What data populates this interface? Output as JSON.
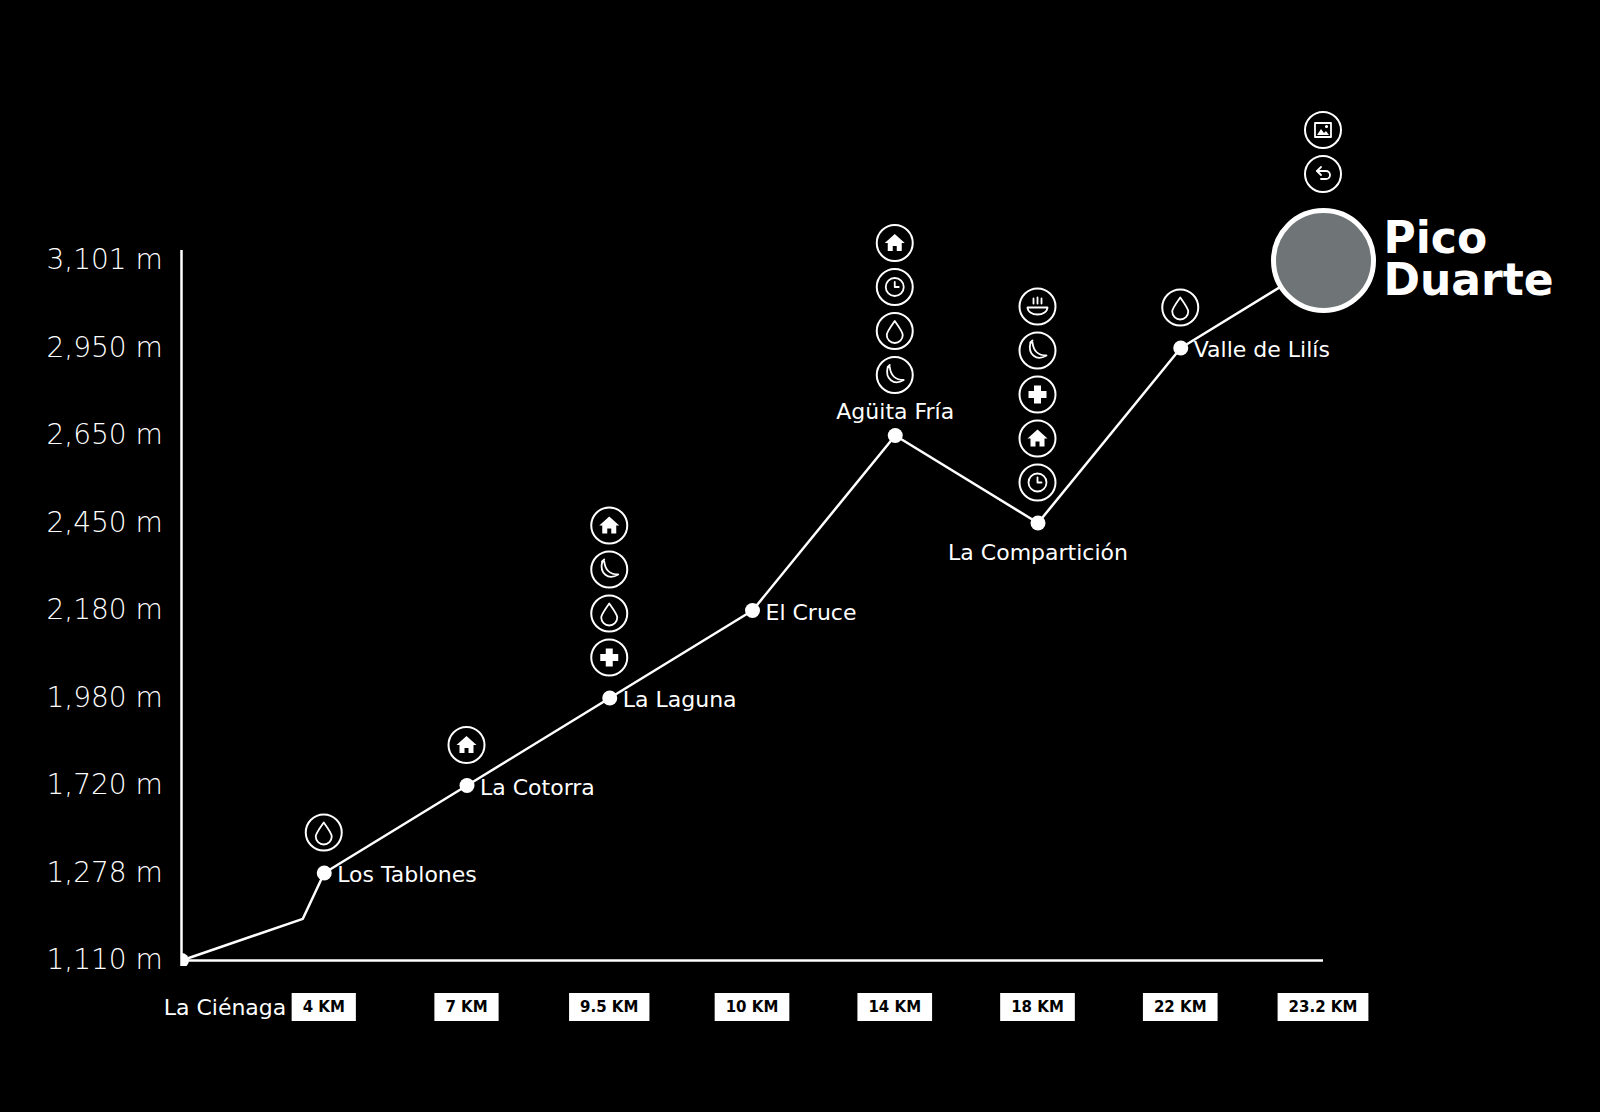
{
  "chart_data": {
    "type": "line",
    "x": [
      0,
      3.4,
      4,
      7,
      9.5,
      10,
      14,
      18,
      22,
      23.2
    ],
    "values": [
      1110,
      1190,
      1278,
      1720,
      1980,
      2180,
      2650,
      2450,
      2950,
      3101
    ],
    "point_labels": [
      null,
      null,
      "Los Tablones",
      "La Cotorra",
      "La Laguna",
      "El Cruce",
      "Agüita Fría",
      "La Compartición",
      "Valle de Lilís",
      "Pico Duarte"
    ],
    "color": "#ffffff",
    "xlim": [
      0,
      23.2
    ],
    "xticks": [
      {
        "value": 0,
        "label": "La Ciénaga"
      },
      {
        "value": 4,
        "label": "4 KM"
      },
      {
        "value": 7,
        "label": "7 KM"
      },
      {
        "value": 9.5,
        "label": "9.5 KM"
      },
      {
        "value": 10,
        "label": "10 KM"
      },
      {
        "value": 14,
        "label": "14 KM"
      },
      {
        "value": 18,
        "label": "18 KM"
      },
      {
        "value": 22,
        "label": "22 KM"
      },
      {
        "value": 23.2,
        "label": "23.2 KM"
      }
    ],
    "ylim": [
      1110,
      3101
    ],
    "yticks": [
      {
        "value": 1110,
        "label": "1,110 m"
      },
      {
        "value": 1278,
        "label": "1,278 m"
      },
      {
        "value": 1720,
        "label": "1,720 m"
      },
      {
        "value": 1980,
        "label": "1,980 m"
      },
      {
        "value": 2180,
        "label": "2,180 m"
      },
      {
        "value": 2450,
        "label": "2,450 m"
      },
      {
        "value": 2650,
        "label": "2,650 m"
      },
      {
        "value": 2950,
        "label": "2,950 m"
      },
      {
        "value": 3101,
        "label": "3,101 m"
      }
    ],
    "grid": false
  }
}
